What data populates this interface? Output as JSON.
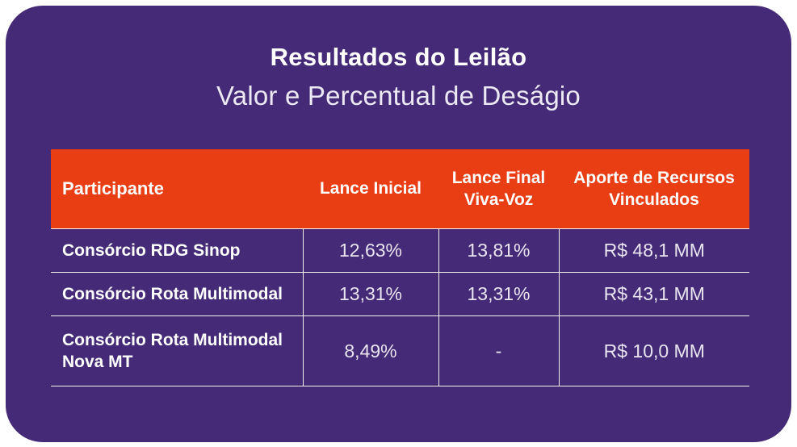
{
  "title": "Resultados do Leilão",
  "subtitle": "Valor e Percentual de Deságio",
  "colors": {
    "page_background": "#ffffff",
    "card_background": "#452B77",
    "header_background": "#E93D14",
    "border": "#F4EFE7",
    "title_text": "#ffffff",
    "subtitle_text": "#EDE9F4",
    "value_text": "#E9E4F0"
  },
  "chart_data": {
    "type": "table",
    "title": "Resultados do Leilão",
    "subtitle": "Valor e Percentual de Deságio",
    "columns": [
      "Participante",
      "Lance Inicial",
      "Lance Final Viva-Voz",
      "Aporte de Recursos Vinculados"
    ],
    "rows": [
      [
        "Consórcio RDG Sinop",
        "12,63%",
        "13,81%",
        "R$ 48,1 MM"
      ],
      [
        "Consórcio Rota Multimodal",
        "13,31%",
        "13,31%",
        "R$ 43,1 MM"
      ],
      [
        "Consórcio Rota Multimodal Nova MT",
        "8,49%",
        "-",
        "R$ 10,0 MM"
      ]
    ]
  }
}
